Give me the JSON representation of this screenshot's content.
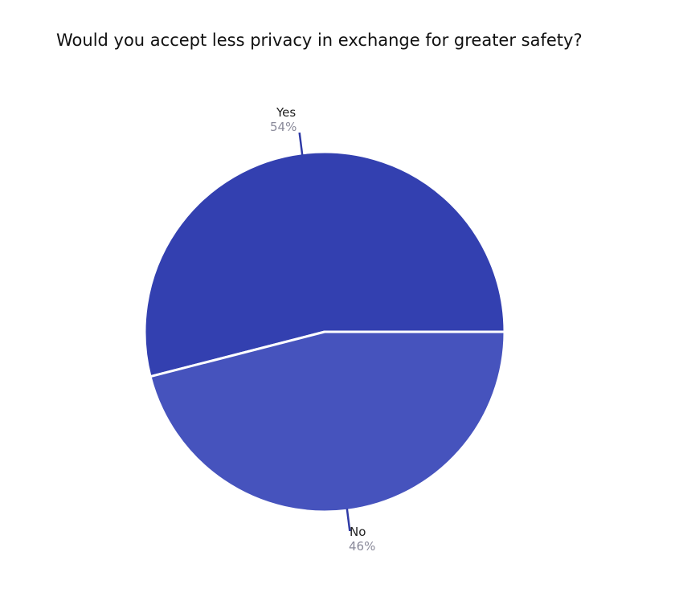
{
  "chart_data": {
    "type": "pie",
    "title": "Would you accept less privacy in exchange for greater safety?",
    "slices": [
      {
        "label": "Yes",
        "value": 54,
        "percent_label": "54%",
        "color": "#3340b0"
      },
      {
        "label": "No",
        "value": 46,
        "percent_label": "46%",
        "color": "#4653bd"
      }
    ],
    "legend": "none"
  }
}
